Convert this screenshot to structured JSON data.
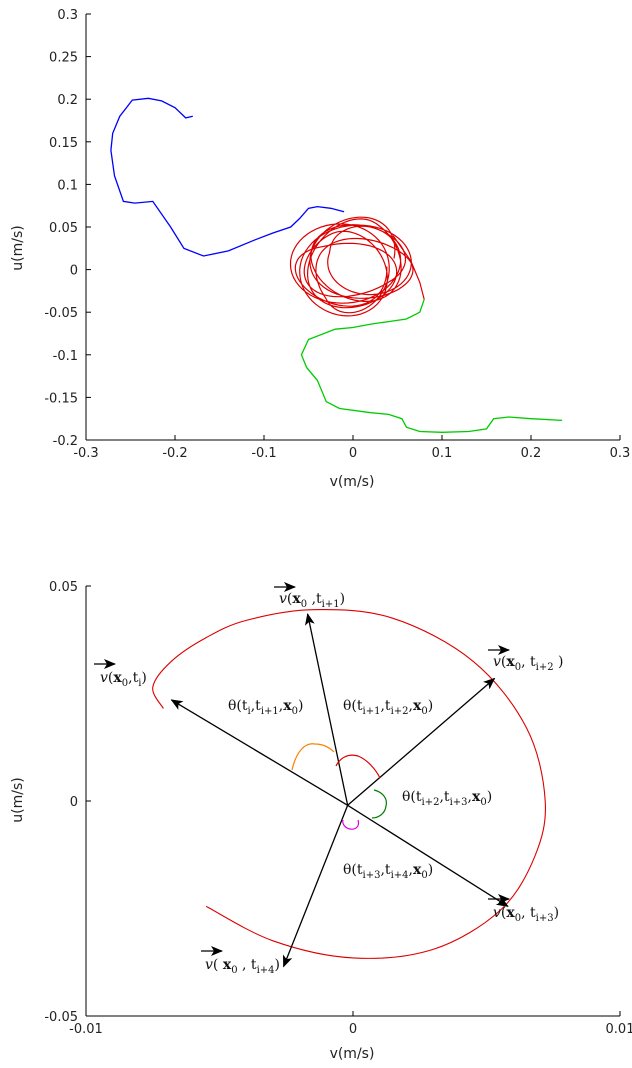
{
  "chart_data": [
    {
      "type": "line",
      "xlabel": "v(m/s)",
      "ylabel": "u(m/s)",
      "xlim": [
        -0.3,
        0.3
      ],
      "ylim": [
        -0.2,
        0.3
      ],
      "xticks": [
        "-0.3",
        "-0.2",
        "-0.1",
        "0",
        "0.1",
        "0.2",
        "0.3"
      ],
      "xtick_values": [
        -0.3,
        -0.2,
        -0.1,
        0,
        0.1,
        0.2,
        0.3
      ],
      "yticks": [
        "0.3",
        "0.25",
        "0.2",
        "0.15",
        "0.1",
        "0.05",
        "0",
        "-0.05",
        "-0.1",
        "-0.15",
        "-0.2"
      ],
      "ytick_values": [
        0.3,
        0.25,
        0.2,
        0.15,
        0.1,
        0.05,
        0,
        -0.05,
        -0.1,
        -0.15,
        -0.2
      ],
      "grid": false,
      "series": [
        {
          "color": "#0000ff",
          "x": [
            -0.18,
            -0.188,
            -0.2,
            -0.215,
            -0.23,
            -0.248,
            -0.262,
            -0.27,
            -0.272,
            -0.268,
            -0.258,
            -0.245,
            -0.225,
            -0.205,
            -0.19,
            -0.168,
            -0.14,
            -0.11,
            -0.09,
            -0.07,
            -0.06,
            -0.05,
            -0.04,
            -0.025,
            -0.01
          ],
          "y": [
            0.18,
            0.178,
            0.19,
            0.198,
            0.201,
            0.199,
            0.18,
            0.16,
            0.14,
            0.11,
            0.08,
            0.078,
            0.08,
            0.05,
            0.025,
            0.016,
            0.022,
            0.035,
            0.043,
            0.05,
            0.06,
            0.072,
            0.074,
            0.072,
            0.068
          ]
        },
        {
          "color": "#00cc00",
          "x": [
            0.08,
            0.075,
            0.06,
            0.04,
            0.02,
            0.0,
            -0.02,
            -0.05,
            -0.058,
            -0.052,
            -0.04,
            -0.03,
            -0.015,
            0.02,
            0.04,
            0.055,
            0.06,
            0.075,
            0.1,
            0.13,
            0.15,
            0.158,
            0.175,
            0.2,
            0.235
          ],
          "y": [
            -0.035,
            -0.05,
            -0.058,
            -0.061,
            -0.064,
            -0.068,
            -0.07,
            -0.082,
            -0.1,
            -0.115,
            -0.13,
            -0.155,
            -0.163,
            -0.168,
            -0.17,
            -0.175,
            -0.185,
            -0.19,
            -0.191,
            -0.19,
            -0.187,
            -0.175,
            -0.173,
            -0.175,
            -0.177
          ]
        }
      ],
      "orbit": {
        "color": "#dd0000",
        "center": [
          0.0,
          0.005
        ],
        "radius_x": 0.06,
        "radius_y": 0.052,
        "loops": 9,
        "tail_x": [
          0.045,
          0.065,
          0.075,
          0.08
        ],
        "tail_y": [
          0.04,
          0.01,
          -0.015,
          -0.035
        ]
      }
    },
    {
      "type": "line",
      "xlabel": "v(m/s)",
      "ylabel": "u(m/s)",
      "xlim": [
        -0.01,
        0.01
      ],
      "ylim": [
        -0.05,
        0.05
      ],
      "xticks": [
        "-0.01",
        "0",
        "0.01"
      ],
      "xtick_values": [
        -0.01,
        0,
        0.01
      ],
      "yticks": [
        "0.05",
        "0",
        "-0.05"
      ],
      "ytick_values": [
        0.05,
        0,
        -0.05
      ],
      "grid": false,
      "origin": [
        -0.0002,
        -0.001
      ],
      "trajectory": {
        "color": "#dd0000",
        "x": [
          -0.0055,
          -0.003,
          0.0,
          0.003,
          0.0055,
          0.0068,
          0.0072,
          0.0065,
          0.0045,
          0.0015,
          -0.0015,
          -0.004,
          -0.0055,
          -0.0068,
          -0.0075,
          -0.0071
        ],
        "y": [
          -0.0245,
          -0.0325,
          -0.0365,
          -0.0345,
          -0.0255,
          -0.013,
          0.0,
          0.017,
          0.0325,
          0.0425,
          0.0445,
          0.042,
          0.038,
          0.0325,
          0.0265,
          0.0215
        ]
      },
      "arrows": [
        {
          "id": "v-ti",
          "to": [
            -0.0068,
            0.0235
          ],
          "label": "v(x0,ti)"
        },
        {
          "id": "v-ti1",
          "to": [
            -0.0017,
            0.0435
          ],
          "label": "v(x0,ti+1)"
        },
        {
          "id": "v-ti2",
          "to": [
            0.0053,
            0.0285
          ],
          "label": "v(x0, ti+2)"
        },
        {
          "id": "v-ti3",
          "to": [
            0.0058,
            -0.0245
          ],
          "label": "v(x0, ti+3)"
        },
        {
          "id": "v-ti4",
          "to": [
            -0.0026,
            -0.0385
          ],
          "label": "v( x0, ti+4)"
        }
      ],
      "angle_arcs": [
        {
          "color": "#ff8000",
          "label": "θ(ti,ti+1,x0)"
        },
        {
          "color": "#dd0000",
          "label": "θ(ti+1,ti+2,x0)"
        },
        {
          "color": "#008000",
          "label": "θ(ti+2,ti+3,x0)"
        },
        {
          "color": "#dd00dd",
          "label": "θ(ti+3,ti+4,x0)"
        }
      ]
    }
  ]
}
